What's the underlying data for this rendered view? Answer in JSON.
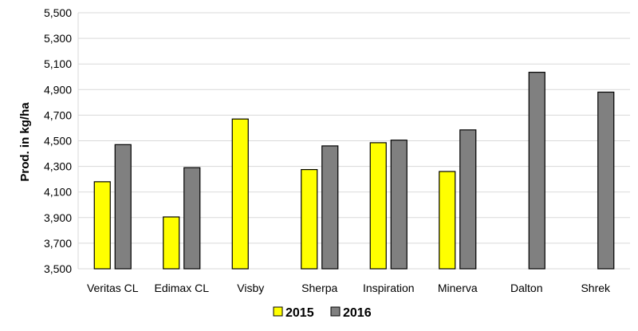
{
  "chart_data": {
    "type": "bar",
    "title": "",
    "xlabel": "",
    "ylabel": "Prod. in kg/ha",
    "ylim": [
      3500,
      5500
    ],
    "ytick_step": 200,
    "yticks": [
      "3,500",
      "3,700",
      "3,900",
      "4,100",
      "4,300",
      "4,500",
      "4,700",
      "4,900",
      "5,100",
      "5,300",
      "5,500"
    ],
    "categories": [
      "Veritas CL",
      "Edimax CL",
      "Visby",
      "Sherpa",
      "Inspiration",
      "Minerva",
      "Dalton",
      "Shrek"
    ],
    "series": [
      {
        "name": "2015",
        "color": "#ffff00",
        "values": [
          4180,
          3905,
          4670,
          4275,
          4485,
          4260,
          null,
          null
        ]
      },
      {
        "name": "2016",
        "color": "#808080",
        "values": [
          4470,
          4290,
          null,
          4460,
          4505,
          4585,
          5035,
          4880
        ]
      }
    ],
    "grid": true,
    "legend_position": "bottom"
  }
}
